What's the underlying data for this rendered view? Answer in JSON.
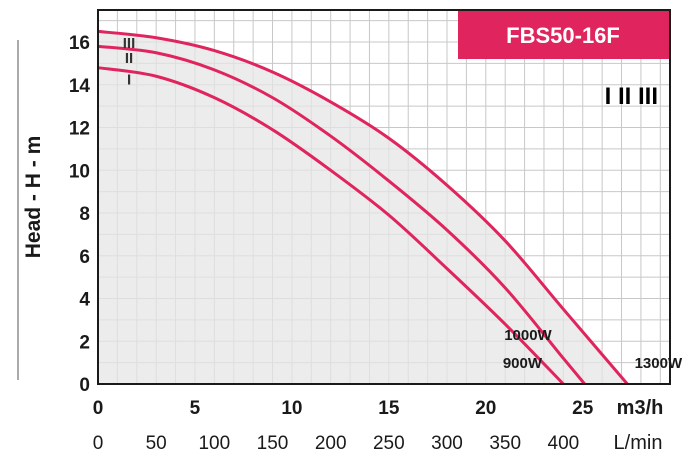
{
  "chart_data": {
    "type": "line",
    "model": "FBS50-16F",
    "speed_indicator": "I II III",
    "ylabel": "Head - H - m",
    "xlabel_primary": "m3/h",
    "xlabel_secondary": "L/min",
    "xlim": [
      0,
      29.5
    ],
    "ylim": [
      0,
      17.5
    ],
    "y_ticks": [
      "0",
      "2",
      "4",
      "6",
      "8",
      "10",
      "12",
      "14",
      "16"
    ],
    "x_ticks": [
      "0",
      "5",
      "10",
      "15",
      "20",
      "25"
    ],
    "x2_ticks": [
      "0",
      "50",
      "100",
      "150",
      "200",
      "250",
      "300",
      "350",
      "400"
    ],
    "grid": true,
    "colors": {
      "curve": "#e0245e",
      "badge": "#e0245e",
      "shade": "#e6e6e6",
      "grid": "#c8c8c8"
    },
    "series": [
      {
        "name": "I",
        "power": "900W",
        "x": [
          0,
          3,
          6,
          9,
          12,
          15,
          18,
          21,
          24
        ],
        "y": [
          14.8,
          14.4,
          13.4,
          11.9,
          10.0,
          7.9,
          5.4,
          2.8,
          0
        ]
      },
      {
        "name": "II",
        "power": "1000W",
        "x": [
          0,
          3,
          6,
          9,
          12,
          15,
          18,
          21,
          24,
          25.1
        ],
        "y": [
          15.8,
          15.5,
          14.7,
          13.4,
          11.6,
          9.5,
          7.2,
          4.5,
          1.2,
          0
        ]
      },
      {
        "name": "III",
        "power": "1300W",
        "x": [
          0,
          3,
          6,
          9,
          12,
          15,
          18,
          21,
          24,
          27.3
        ],
        "y": [
          16.5,
          16.2,
          15.6,
          14.6,
          13.2,
          11.5,
          9.3,
          6.7,
          3.5,
          0
        ]
      }
    ]
  }
}
